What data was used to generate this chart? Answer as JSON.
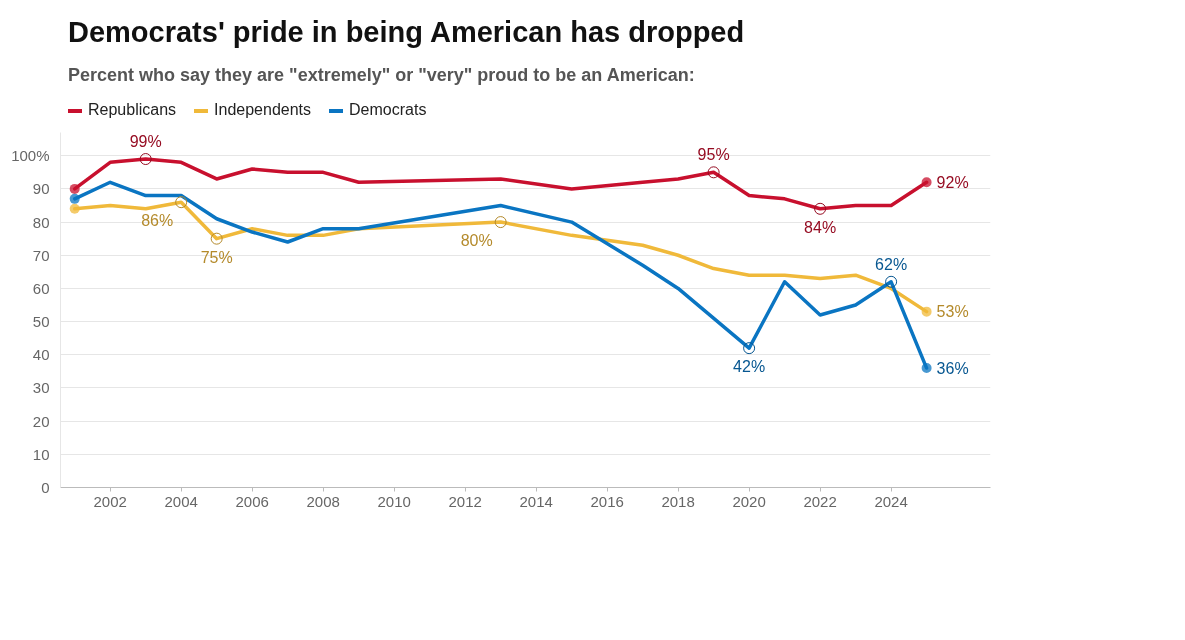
{
  "chart_data": {
    "type": "line",
    "title": "Democrats' pride in being American has dropped",
    "subtitle": "Percent who say they are \"extremely\" or \"very\" proud to be an American:",
    "x": [
      2001,
      2002,
      2003,
      2004,
      2005,
      2006,
      2007,
      2008,
      2009,
      2013,
      2015,
      2017,
      2018,
      2019,
      2020,
      2021,
      2022,
      2023,
      2024,
      2025
    ],
    "series": [
      {
        "name": "Republicans",
        "color": "#c8102e",
        "values": [
          90,
          98,
          99,
          98,
          93,
          96,
          95,
          95,
          92,
          93,
          90,
          92,
          93,
          95,
          88,
          87,
          84,
          85,
          85,
          92
        ]
      },
      {
        "name": "Independents",
        "color": "#f0b93a",
        "values": [
          84,
          85,
          84,
          86,
          75,
          78,
          76,
          76,
          78,
          80,
          76,
          73,
          70,
          66,
          64,
          64,
          63,
          64,
          60,
          53
        ]
      },
      {
        "name": "Democrats",
        "color": "#0a75c2",
        "values": [
          87,
          92,
          88,
          88,
          81,
          77,
          74,
          78,
          78,
          85,
          80,
          67,
          60,
          null,
          42,
          62,
          52,
          55,
          62,
          36
        ]
      }
    ],
    "xlim": [
      2000.6,
      2026.8
    ],
    "ylim": [
      0,
      107
    ],
    "xticks": [
      2002,
      2004,
      2006,
      2008,
      2010,
      2012,
      2014,
      2016,
      2018,
      2020,
      2022,
      2024
    ],
    "yticks": [
      0,
      10,
      20,
      30,
      40,
      50,
      60,
      70,
      80,
      90,
      {
        "value": 100,
        "label": "100%"
      }
    ],
    "grid": "y",
    "legend": "top left",
    "annotations": [
      {
        "text": "99%",
        "x": 2003,
        "y": 99
      },
      {
        "text": "95%",
        "x": 2019,
        "y": 95
      },
      {
        "text": "84%",
        "x": 2022,
        "y": 84
      },
      {
        "text": "92%",
        "x": 2025,
        "y": 92
      },
      {
        "text": "86%",
        "x": 2004,
        "y": 86
      },
      {
        "text": "75%",
        "x": 2005,
        "y": 75
      },
      {
        "text": "80%",
        "x": 2013,
        "y": 80
      },
      {
        "text": "53%",
        "x": 2025,
        "y": 53
      },
      {
        "text": "42%",
        "x": 2020,
        "y": 42
      },
      {
        "text": "62%",
        "x": 2024,
        "y": 62
      },
      {
        "text": "36%",
        "x": 2025,
        "y": 36
      }
    ]
  }
}
